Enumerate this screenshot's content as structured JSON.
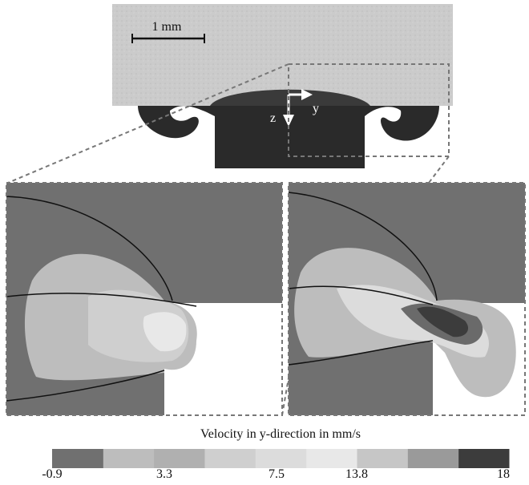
{
  "micrograph": {
    "scale_bar": "1 mm",
    "axis_y": "y",
    "axis_z": "z"
  },
  "colorbar": {
    "title": "Velocity in y-direction in mm/s",
    "ticks": [
      -0.9,
      3.3,
      7.5,
      13.8,
      18
    ],
    "colors": [
      "#707070",
      "#bdbdbd",
      "#b0b0b0",
      "#cfcfcf",
      "#dcdcdc",
      "#e8e8e8",
      "#c6c6c6",
      "#9a9a9a",
      "#3c3c3c"
    ]
  }
}
